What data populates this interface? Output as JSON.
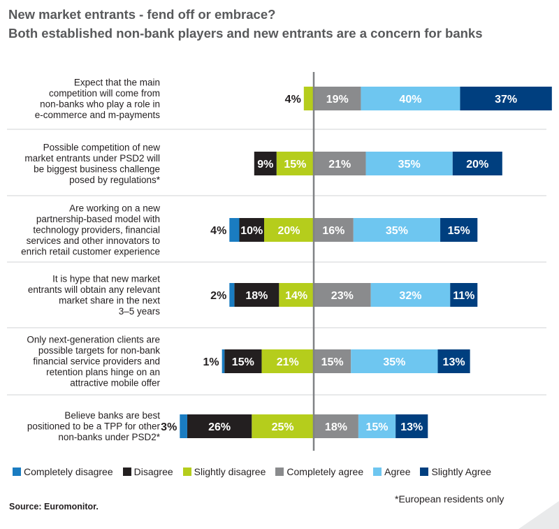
{
  "titles": {
    "line1": "New market entrants - fend off or embrace?",
    "line2": "Both established non-bank players and new entrants are a concern for banks"
  },
  "colors": {
    "completely_disagree": "#1a7cc1",
    "disagree": "#231f20",
    "slightly_disagree": "#b5cd1c",
    "completely_agree": "#8a8b8d",
    "agree": "#6ec6f0",
    "slightly_agree": "#003f7f",
    "axis": "#808285",
    "divider": "#d1d3d4"
  },
  "chart_data": {
    "type": "bar",
    "orientation": "horizontal-diverging",
    "categories": [
      "Expect that the main competition will come from non-banks who play a role in e-commerce and m-payments",
      "Possible competition of new market entrants under PSD2 will be biggest business challenge posed by regulations*",
      "Are working on a new partnership-based model with technology providers, financial services and other innovators to enrich retail customer experience",
      "It is hype that new market entrants will obtain any relevant market share in the next 3–5 years",
      "Only next-generation clients are possible targets for non-bank financial service providers and retention plans hinge on an attractive mobile offer",
      "Believe banks are best positioned to be a TPP for other non-banks under PSD2*"
    ],
    "category_lines": [
      [
        "Expect that the main",
        "competition will come from",
        "non-banks who play a role in",
        "e-commerce and m-payments"
      ],
      [
        "Possible competition of new",
        "market entrants under PSD2 will",
        "be biggest business challenge",
        "posed by regulations*"
      ],
      [
        "Are working on a new",
        "partnership-based model with",
        "technology providers, financial",
        "services and other innovators to",
        "enrich retail customer experience"
      ],
      [
        "It is hype that new market",
        "entrants will obtain any relevant",
        "market share in the next",
        "3–5 years"
      ],
      [
        "Only next-generation clients are",
        "possible targets for non-bank",
        "financial service providers and",
        "retention plans hinge on an",
        "attractive mobile offer"
      ],
      [
        "Believe banks are best",
        "positioned to be a TPP for other",
        "non-banks under PSD2*"
      ]
    ],
    "series": [
      {
        "name": "Completely disagree",
        "key": "completely_disagree",
        "side": "left",
        "values": [
          0,
          0,
          4,
          2,
          1,
          3
        ]
      },
      {
        "name": "Disagree",
        "key": "disagree",
        "side": "left",
        "values": [
          0,
          9,
          10,
          18,
          15,
          26
        ]
      },
      {
        "name": "Slightly disagree",
        "key": "slightly_disagree",
        "side": "left",
        "values": [
          4,
          15,
          20,
          14,
          21,
          25
        ]
      },
      {
        "name": "Completely agree",
        "key": "completely_agree",
        "side": "right",
        "values": [
          19,
          21,
          16,
          23,
          15,
          18
        ]
      },
      {
        "name": "Agree",
        "key": "agree",
        "side": "right",
        "values": [
          40,
          35,
          35,
          32,
          35,
          15
        ]
      },
      {
        "name": "Slightly Agree",
        "key": "slightly_agree",
        "side": "right",
        "values": [
          37,
          20,
          15,
          11,
          13,
          13
        ]
      }
    ],
    "value_suffix": "%",
    "xlim": [
      -55,
      100
    ]
  },
  "legend": [
    {
      "label": "Completely disagree",
      "key": "completely_disagree"
    },
    {
      "label": "Disagree",
      "key": "disagree"
    },
    {
      "label": "Slightly disagree",
      "key": "slightly_disagree"
    },
    {
      "label": "Completely agree",
      "key": "completely_agree"
    },
    {
      "label": "Agree",
      "key": "agree"
    },
    {
      "label": "Slightly Agree",
      "key": "slightly_agree"
    }
  ],
  "footnote": "*European residents only",
  "source": "Source: Euromonitor."
}
